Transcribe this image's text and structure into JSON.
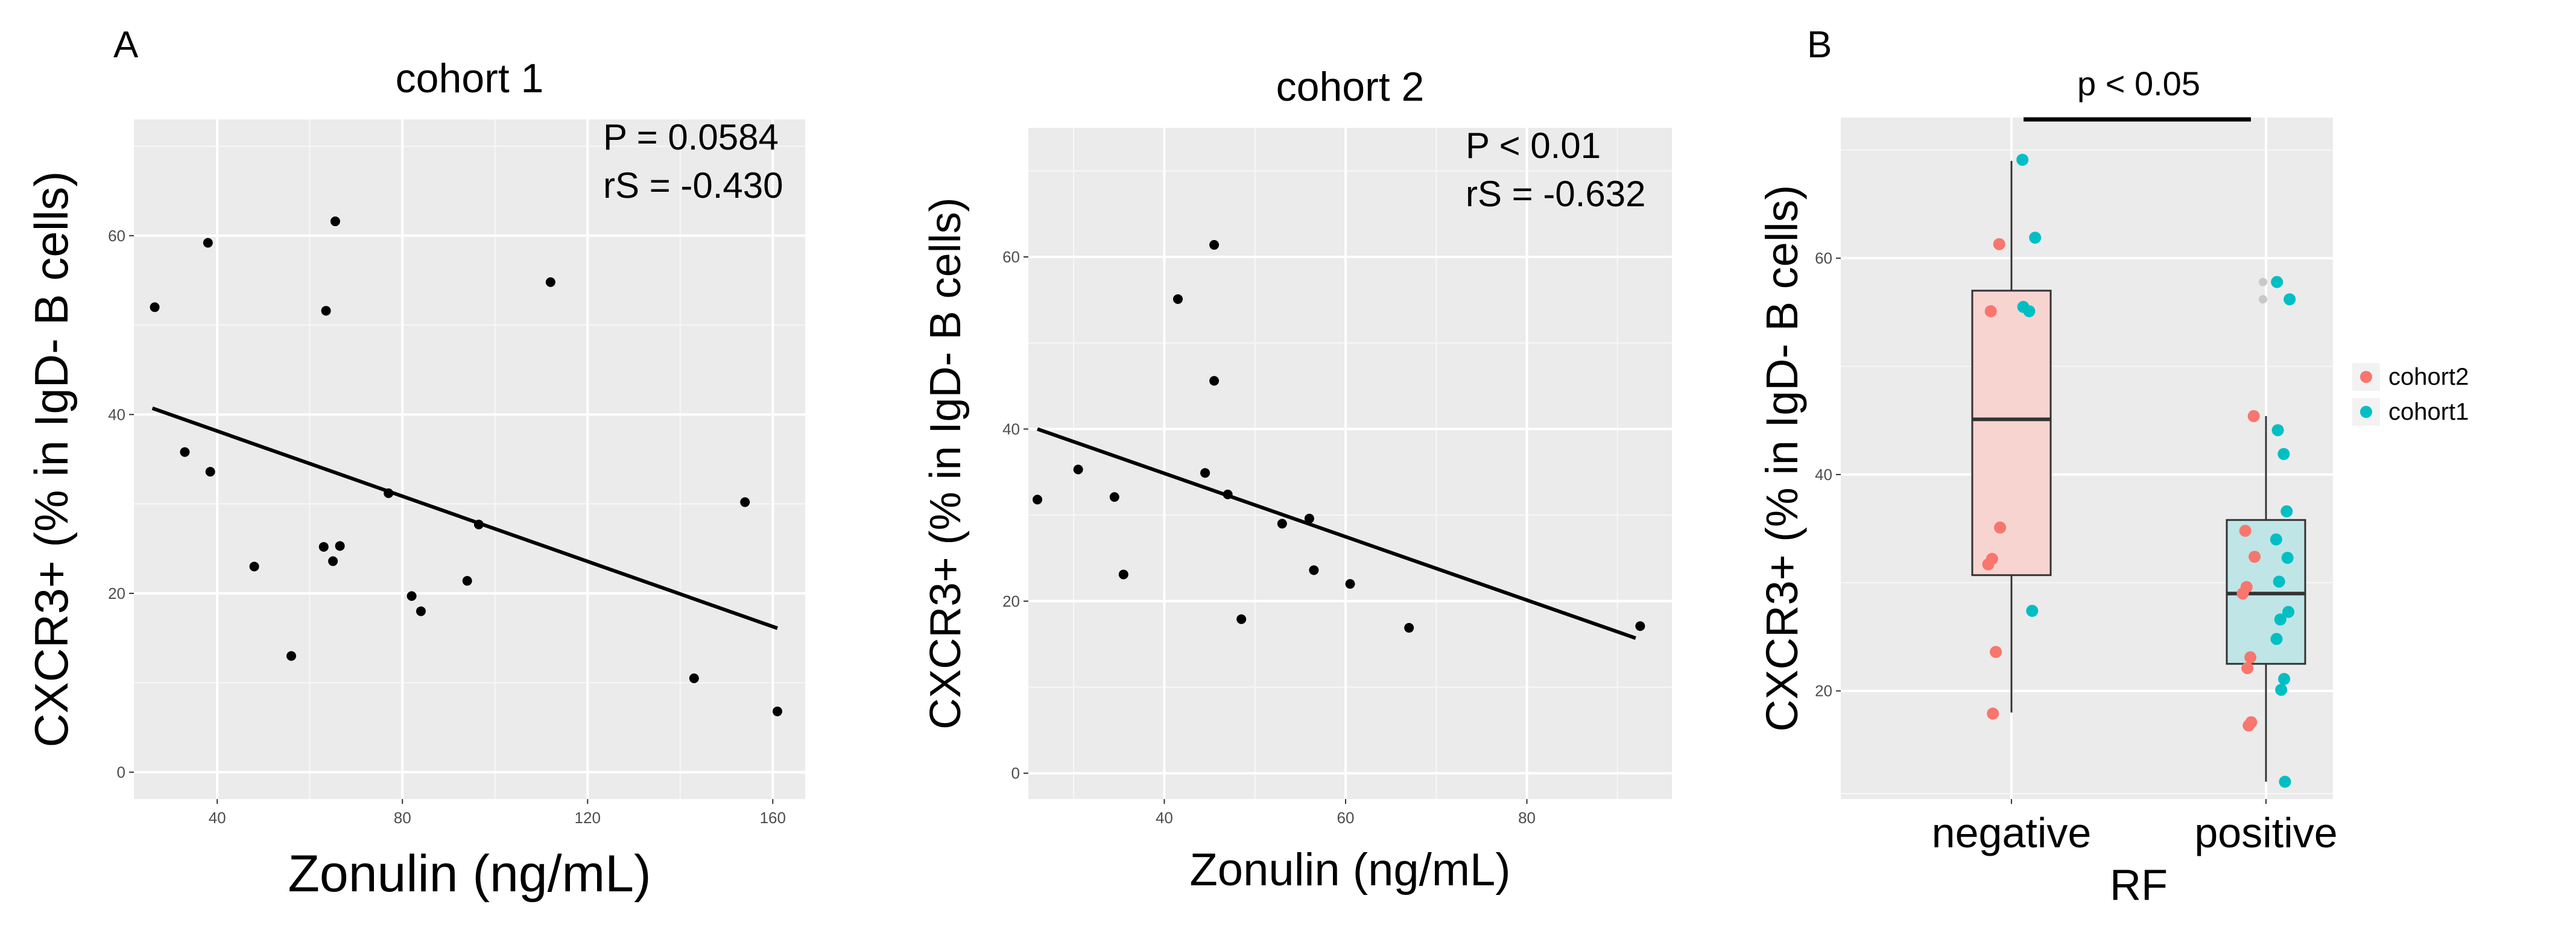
{
  "panel_labels": [
    "A",
    "B"
  ],
  "chart_data": [
    {
      "type": "scatter",
      "title": "cohort 1",
      "xlabel": "Zonulin (ng/mL)",
      "ylabel": "CXCR3+ (% in IgD- B cells)",
      "xlim": [
        22,
        167
      ],
      "ylim": [
        -3,
        73
      ],
      "xticks": [
        40,
        80,
        120,
        160
      ],
      "yticks": [
        0,
        20,
        40,
        60
      ],
      "grid": true,
      "points": [
        {
          "x": 26.5,
          "y": 52.0
        },
        {
          "x": 33.0,
          "y": 35.8
        },
        {
          "x": 38.0,
          "y": 59.2
        },
        {
          "x": 38.5,
          "y": 33.6
        },
        {
          "x": 48.0,
          "y": 23.0
        },
        {
          "x": 56.0,
          "y": 13.0
        },
        {
          "x": 63.0,
          "y": 25.2
        },
        {
          "x": 63.5,
          "y": 51.6
        },
        {
          "x": 65.0,
          "y": 23.6
        },
        {
          "x": 65.5,
          "y": 61.6
        },
        {
          "x": 66.5,
          "y": 25.3
        },
        {
          "x": 77.0,
          "y": 31.2
        },
        {
          "x": 82.0,
          "y": 19.7
        },
        {
          "x": 84.0,
          "y": 18.0
        },
        {
          "x": 94.0,
          "y": 21.4
        },
        {
          "x": 96.5,
          "y": 27.7
        },
        {
          "x": 112.0,
          "y": 54.8
        },
        {
          "x": 143.0,
          "y": 10.5
        },
        {
          "x": 154.0,
          "y": 30.2
        },
        {
          "x": 161.0,
          "y": 6.8
        }
      ],
      "fit_line": {
        "x": [
          26,
          161
        ],
        "y": [
          40.7,
          16.1
        ]
      },
      "annotations": [
        "P = 0.0584",
        "rS = -0.430"
      ]
    },
    {
      "type": "scatter",
      "title": "cohort 2",
      "xlabel": "Zonulin (ng/mL)",
      "ylabel": "CXCR3+ (% in IgD- B cells)",
      "xlim": [
        25,
        96
      ],
      "ylim": [
        -3,
        75
      ],
      "xticks": [
        40,
        60,
        80
      ],
      "yticks": [
        0,
        20,
        40,
        60
      ],
      "grid": true,
      "points": [
        {
          "x": 26.0,
          "y": 31.8
        },
        {
          "x": 30.5,
          "y": 35.3
        },
        {
          "x": 34.5,
          "y": 32.1
        },
        {
          "x": 35.5,
          "y": 23.1
        },
        {
          "x": 41.5,
          "y": 55.1
        },
        {
          "x": 44.5,
          "y": 34.9
        },
        {
          "x": 45.5,
          "y": 61.4
        },
        {
          "x": 45.5,
          "y": 45.6
        },
        {
          "x": 47.0,
          "y": 32.4
        },
        {
          "x": 48.5,
          "y": 17.9
        },
        {
          "x": 53.0,
          "y": 29.0
        },
        {
          "x": 56.0,
          "y": 29.6
        },
        {
          "x": 56.5,
          "y": 23.6
        },
        {
          "x": 60.5,
          "y": 22.0
        },
        {
          "x": 67.0,
          "y": 16.9
        },
        {
          "x": 92.5,
          "y": 17.1
        }
      ],
      "fit_line": {
        "x": [
          26,
          92
        ],
        "y": [
          40.0,
          15.7
        ]
      },
      "annotations": [
        "P   < 0.01",
        "rS = -0.632"
      ]
    },
    {
      "type": "box",
      "xlabel": "RF",
      "ylabel": "CXCR3+ (% in IgD- B cells)",
      "categories": [
        "negative",
        "positive"
      ],
      "ylim": [
        10,
        73
      ],
      "yticks": [
        20,
        40,
        60
      ],
      "grid": true,
      "boxes": [
        {
          "category": "negative",
          "whisker_low": 18.0,
          "q1": 30.7,
          "median": 45.1,
          "q3": 57.0,
          "whisker_high": 69.0,
          "outliers": []
        },
        {
          "category": "positive",
          "whisker_low": 11.6,
          "q1": 22.5,
          "median": 29.0,
          "q3": 35.8,
          "whisker_high": 45.4,
          "outliers": [
            57.8,
            56.2
          ]
        }
      ],
      "series": [
        {
          "name": "cohort2",
          "color": "#F8766D",
          "points": [
            {
              "category": "negative",
              "y": 61.3
            },
            {
              "category": "negative",
              "y": 55.1
            },
            {
              "category": "negative",
              "y": 35.1
            },
            {
              "category": "negative",
              "y": 32.2
            },
            {
              "category": "negative",
              "y": 31.7
            },
            {
              "category": "negative",
              "y": 23.6
            },
            {
              "category": "negative",
              "y": 17.9
            },
            {
              "category": "positive",
              "y": 45.4
            },
            {
              "category": "positive",
              "y": 34.8
            },
            {
              "category": "positive",
              "y": 32.4
            },
            {
              "category": "positive",
              "y": 29.6
            },
            {
              "category": "positive",
              "y": 29.0
            },
            {
              "category": "positive",
              "y": 23.1
            },
            {
              "category": "positive",
              "y": 22.1
            },
            {
              "category": "positive",
              "y": 17.1
            },
            {
              "category": "positive",
              "y": 16.8
            }
          ]
        },
        {
          "name": "cohort1",
          "color": "#00BFC4",
          "points": [
            {
              "category": "negative",
              "y": 69.1
            },
            {
              "category": "negative",
              "y": 61.9
            },
            {
              "category": "negative",
              "y": 55.5
            },
            {
              "category": "negative",
              "y": 55.1
            },
            {
              "category": "negative",
              "y": 27.4
            },
            {
              "category": "positive",
              "y": 57.8
            },
            {
              "category": "positive",
              "y": 56.2
            },
            {
              "category": "positive",
              "y": 44.1
            },
            {
              "category": "positive",
              "y": 41.9
            },
            {
              "category": "positive",
              "y": 36.6
            },
            {
              "category": "positive",
              "y": 34.0
            },
            {
              "category": "positive",
              "y": 32.3
            },
            {
              "category": "positive",
              "y": 30.1
            },
            {
              "category": "positive",
              "y": 27.3
            },
            {
              "category": "positive",
              "y": 26.6
            },
            {
              "category": "positive",
              "y": 24.8
            },
            {
              "category": "positive",
              "y": 21.1
            },
            {
              "category": "positive",
              "y": 20.1
            },
            {
              "category": "positive",
              "y": 11.6
            }
          ]
        }
      ],
      "significance": "p < 0.05",
      "legend_position": "right",
      "box_fill": {
        "negative": "#F8D4D1",
        "positive": "#BFE5E7"
      }
    }
  ]
}
